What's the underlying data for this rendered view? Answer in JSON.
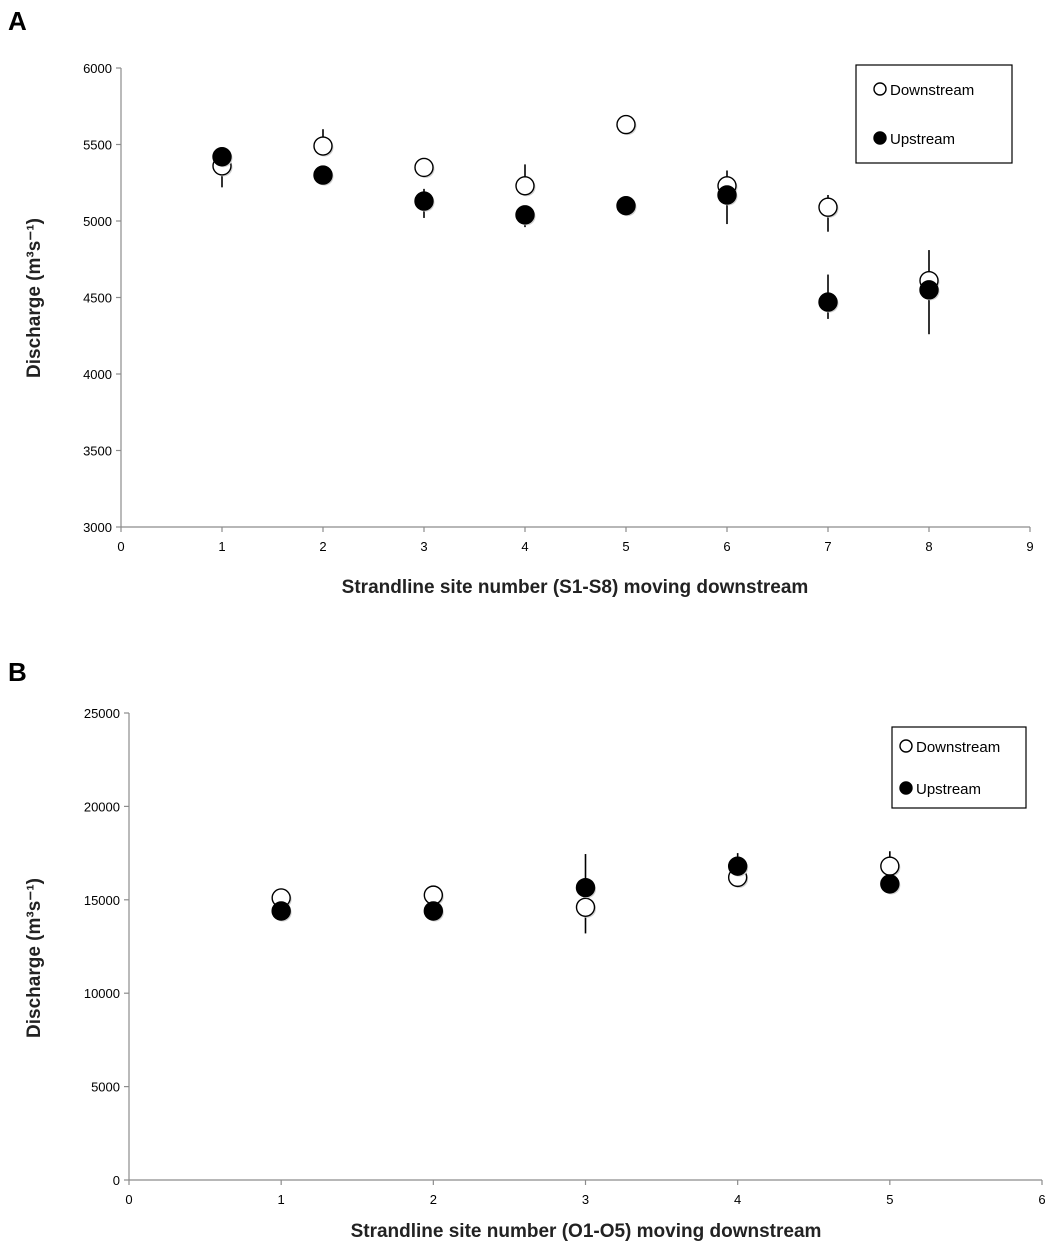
{
  "chart_data": [
    {
      "panel": "A",
      "type": "scatter",
      "xlabel": "Strandline site number (S1-S8) moving downstream",
      "ylabel": "Discharge (m³s⁻¹)",
      "xlim": [
        0,
        9
      ],
      "ylim": [
        3000,
        6000
      ],
      "xticks": [
        0,
        1,
        2,
        3,
        4,
        5,
        6,
        7,
        8,
        9
      ],
      "yticks": [
        3000,
        3500,
        4000,
        4500,
        5000,
        5500,
        6000
      ],
      "grid": false,
      "legend_position": "top-right",
      "series": [
        {
          "name": "Downstream",
          "marker": "open-circle",
          "points": [
            {
              "x": 1,
              "y": 5360,
              "err_lo": 140,
              "err_hi": 0
            },
            {
              "x": 2,
              "y": 5490,
              "err_lo": 0,
              "err_hi": 110
            },
            {
              "x": 3,
              "y": 5350,
              "err_lo": 0,
              "err_hi": 0
            },
            {
              "x": 4,
              "y": 5230,
              "err_lo": 0,
              "err_hi": 140
            },
            {
              "x": 5,
              "y": 5630,
              "err_lo": 0,
              "err_hi": 0
            },
            {
              "x": 6,
              "y": 5230,
              "err_lo": 0,
              "err_hi": 100
            },
            {
              "x": 7,
              "y": 5090,
              "err_lo": 160,
              "err_hi": 80
            },
            {
              "x": 8,
              "y": 4610,
              "err_lo": 0,
              "err_hi": 200
            }
          ]
        },
        {
          "name": "Upstream",
          "marker": "filled-circle",
          "points": [
            {
              "x": 1,
              "y": 5420,
              "err_lo": 0,
              "err_hi": 0
            },
            {
              "x": 2,
              "y": 5300,
              "err_lo": 0,
              "err_hi": 0
            },
            {
              "x": 3,
              "y": 5130,
              "err_lo": 110,
              "err_hi": 80
            },
            {
              "x": 4,
              "y": 5040,
              "err_lo": 80,
              "err_hi": 0
            },
            {
              "x": 5,
              "y": 5100,
              "err_lo": 0,
              "err_hi": 0
            },
            {
              "x": 6,
              "y": 5170,
              "err_lo": 190,
              "err_hi": 0
            },
            {
              "x": 7,
              "y": 4470,
              "err_lo": 110,
              "err_hi": 180
            },
            {
              "x": 8,
              "y": 4550,
              "err_lo": 290,
              "err_hi": 0
            }
          ]
        }
      ]
    },
    {
      "panel": "B",
      "type": "scatter",
      "xlabel": "Strandline site number (O1-O5) moving downstream",
      "ylabel": "Discharge (m³s⁻¹)",
      "xlim": [
        0,
        6
      ],
      "ylim": [
        0,
        25000
      ],
      "xticks": [
        0,
        1,
        2,
        3,
        4,
        5,
        6
      ],
      "yticks": [
        0,
        5000,
        10000,
        15000,
        20000,
        25000
      ],
      "grid": false,
      "legend_position": "top-right",
      "series": [
        {
          "name": "Downstream",
          "marker": "open-circle",
          "points": [
            {
              "x": 1,
              "y": 15100,
              "err_lo": 0,
              "err_hi": 0
            },
            {
              "x": 2,
              "y": 15250,
              "err_lo": 0,
              "err_hi": 0
            },
            {
              "x": 3,
              "y": 14600,
              "err_lo": 1400,
              "err_hi": 0
            },
            {
              "x": 4,
              "y": 16200,
              "err_lo": 0,
              "err_hi": 0
            },
            {
              "x": 5,
              "y": 16800,
              "err_lo": 0,
              "err_hi": 800
            }
          ]
        },
        {
          "name": "Upstream",
          "marker": "filled-circle",
          "points": [
            {
              "x": 1,
              "y": 14400,
              "err_lo": 0,
              "err_hi": 0
            },
            {
              "x": 2,
              "y": 14400,
              "err_lo": 0,
              "err_hi": 0
            },
            {
              "x": 3,
              "y": 15650,
              "err_lo": 0,
              "err_hi": 1800
            },
            {
              "x": 4,
              "y": 16800,
              "err_lo": 0,
              "err_hi": 700
            },
            {
              "x": 5,
              "y": 15850,
              "err_lo": 500,
              "err_hi": 0
            }
          ]
        }
      ]
    }
  ]
}
